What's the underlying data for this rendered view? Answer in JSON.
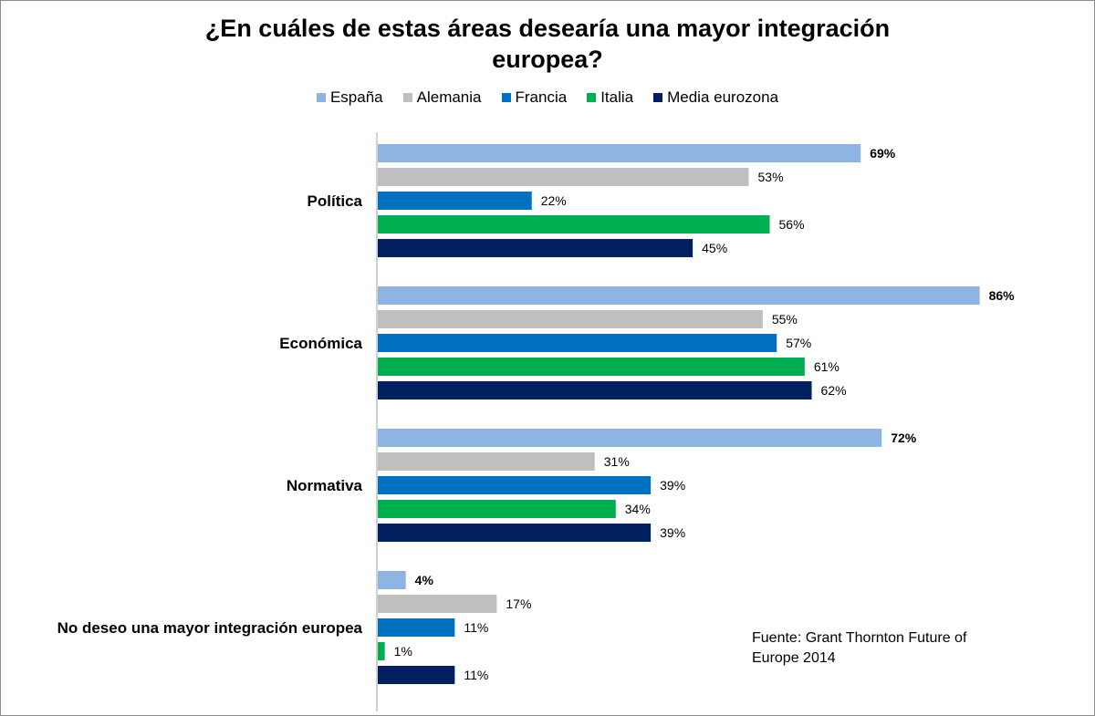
{
  "chart_data": {
    "type": "bar",
    "orientation": "horizontal",
    "title": "¿En cuáles de estas áreas desearía una mayor integración europea?",
    "title_lines": [
      "¿En cuáles de estas áreas desearía una mayor integración",
      "europea?"
    ],
    "categories": [
      "Política",
      "Económica",
      "Normativa",
      "No deseo una mayor integración europea"
    ],
    "series": [
      {
        "name": "España",
        "color": "#8EB4E3",
        "values": [
          69,
          86,
          72,
          4
        ],
        "labels": [
          "69%",
          "86%",
          "72%",
          "4%"
        ],
        "bold_labels": true
      },
      {
        "name": "Alemania",
        "color": "#BFBFBF",
        "values": [
          53,
          55,
          31,
          17
        ],
        "labels": [
          "53%",
          "55%",
          "31%",
          "17%"
        ]
      },
      {
        "name": "Francia",
        "color": "#0070C0",
        "values": [
          22,
          57,
          39,
          11
        ],
        "labels": [
          "22%",
          "57%",
          "39%",
          "11%"
        ]
      },
      {
        "name": "Italia",
        "color": "#00B050",
        "values": [
          56,
          61,
          34,
          1
        ],
        "labels": [
          "56%",
          "61%",
          "34%",
          "1%"
        ]
      },
      {
        "name": "Media eurozona",
        "color": "#002060",
        "values": [
          45,
          62,
          39,
          11
        ],
        "labels": [
          "45%",
          "62%",
          "39%",
          "11%"
        ]
      }
    ],
    "xlim": [
      0,
      100
    ],
    "grid": false,
    "legend_position": "top",
    "source_lines": [
      "Fuente: Grant Thornton Future of",
      "Europe 2014"
    ]
  }
}
